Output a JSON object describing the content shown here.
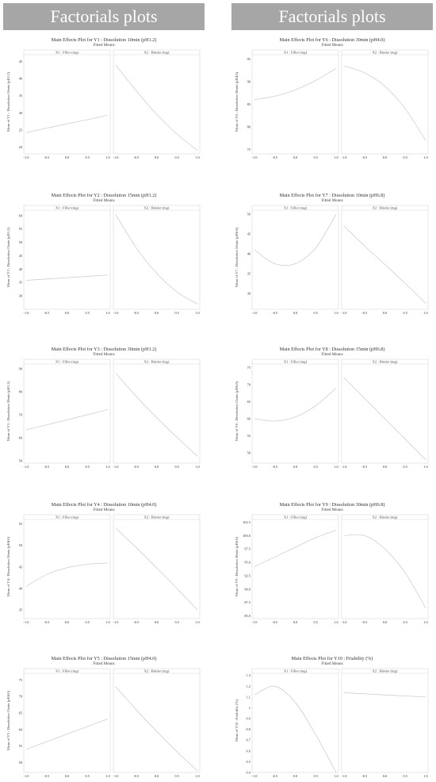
{
  "headers": {
    "left": "Factorials plots",
    "right": "Factorials plots"
  },
  "chart_data": [
    {
      "type": "line",
      "title": "Main Effects Plot for Y1 : Dissolution 10min (pH1.2)",
      "subtitle": "Fitted Means",
      "panels": [
        "X1 : Filler (mg)",
        "X2 : Binder (mg)"
      ],
      "ylabel": "Mean of Y1 : Dissolution 10min (pH1.2)",
      "xticks": [
        "-1.0",
        "-0.5",
        "0.0",
        "0.5",
        "1.0"
      ],
      "yticks": [
        20,
        25,
        30,
        35,
        40,
        45
      ],
      "ylim": [
        18,
        47
      ],
      "series": [
        {
          "x": [
            -1.0,
            -0.5,
            0.0,
            0.5,
            1.0
          ],
          "y": [
            24.2,
            25.5,
            26.8,
            28.0,
            29.3
          ]
        },
        {
          "x": [
            -1.0,
            -0.5,
            0.0,
            0.5,
            1.0
          ],
          "y": [
            44.0,
            36.5,
            29.6,
            23.8,
            19.0
          ]
        }
      ]
    },
    {
      "type": "line",
      "title": "Main Effects Plot for Y2 : Dissolution 15min (pH1.2)",
      "subtitle": "Fitted Means",
      "panels": [
        "X1 : Filler (mg)",
        "X2 : Binder (mg)"
      ],
      "ylabel": "Mean of Y2 : Dissolution 15min (pH1.2)",
      "xticks": [
        "-1.0",
        "-0.5",
        "0.0",
        "0.5",
        "1.0"
      ],
      "yticks": [
        30,
        35,
        40,
        45,
        50,
        55,
        60
      ],
      "ylim": [
        25,
        62
      ],
      "series": [
        {
          "x": [
            -1.0,
            -0.5,
            0.0,
            0.5,
            1.0
          ],
          "y": [
            35.8,
            36.3,
            36.8,
            37.3,
            37.8
          ]
        },
        {
          "x": [
            -1.0,
            -0.5,
            0.0,
            0.5,
            1.0
          ],
          "y": [
            60.3,
            48.0,
            38.5,
            31.5,
            27.0
          ]
        }
      ]
    },
    {
      "type": "line",
      "title": "Main Effects Plot for Y3 : Dissolution 30min (pH1.2)",
      "subtitle": "Fitted Means",
      "panels": [
        "X1 : Filler (mg)",
        "X2 : Binder (mg)"
      ],
      "ylabel": "Mean of Y3 : Dissolution 30min (pH1.2)",
      "xticks": [
        "-1.0",
        "-0.5",
        "0.0",
        "0.5",
        "1.0"
      ],
      "yticks": [
        50,
        60,
        70,
        80,
        90
      ],
      "ylim": [
        49,
        92
      ],
      "series": [
        {
          "x": [
            -1.0,
            -0.5,
            0.0,
            0.5,
            1.0
          ],
          "y": [
            63.5,
            65.6,
            67.8,
            70.0,
            72.3
          ]
        },
        {
          "x": [
            -1.0,
            -0.5,
            0.0,
            0.5,
            1.0
          ],
          "y": [
            88.0,
            78.0,
            68.8,
            60.2,
            52.0
          ]
        }
      ]
    },
    {
      "type": "line",
      "title": "Main Effects Plot for Y4 : Dissolution 10min (pH4.0)",
      "subtitle": "Fitted Means",
      "panels": [
        "X1 : Filler (mg)",
        "X2 : Binder (mg)"
      ],
      "ylabel": "Mean of Y4 : Dissolution 10min (pH4.0)",
      "xticks": [
        "-1.0",
        "-0.5",
        "0.0",
        "0.5",
        "1.0"
      ],
      "yticks": [
        35,
        40,
        45,
        50,
        55
      ],
      "ylim": [
        33,
        56
      ],
      "series": [
        {
          "x": [
            -1.0,
            -0.5,
            0.0,
            0.5,
            1.0
          ],
          "y": [
            40.5,
            43.2,
            44.8,
            45.6,
            45.9
          ]
        },
        {
          "x": [
            -1.0,
            -0.5,
            0.0,
            0.5,
            1.0
          ],
          "y": [
            54.0,
            49.5,
            44.8,
            40.0,
            35.0
          ]
        }
      ]
    },
    {
      "type": "line",
      "title": "Main Effects Plot for Y5 : Dissolution 15min (pH4.0)",
      "subtitle": "Fitted Means",
      "panels": [
        "X1 : Filler (mg)",
        "X2 : Binder (mg)"
      ],
      "ylabel": "Mean of Y5 : Dissolution 15min (pH4.0)",
      "xticks": [
        "-1.0",
        "-0.5",
        "0.0",
        "0.5",
        "1.0"
      ],
      "yticks": [
        50,
        55,
        60,
        65,
        70,
        75
      ],
      "ylim": [
        47,
        77
      ],
      "series": [
        {
          "x": [
            -1.0,
            -0.5,
            0.0,
            0.5,
            1.0
          ],
          "y": [
            54.0,
            56.3,
            58.6,
            60.9,
            63.2
          ]
        },
        {
          "x": [
            -1.0,
            -0.5,
            0.0,
            0.5,
            1.0
          ],
          "y": [
            73.0,
            66.0,
            59.5,
            53.3,
            47.5
          ]
        }
      ]
    },
    {
      "type": "line",
      "title": "Main Effects Plot for Y6 : Dissolution 30min (pH4.0)",
      "subtitle": "Fitted Means",
      "panels": [
        "X1 : Filler (mg)",
        "X2 : Binder (mg)"
      ],
      "ylabel": "Mean of Y6 : Dissolution 30min (pH4.0)",
      "xticks": [
        "-1.0",
        "-0.5",
        "0.0",
        "0.5",
        "1.0"
      ],
      "yticks": [
        75,
        80,
        85,
        90,
        95
      ],
      "ylim": [
        74,
        96
      ],
      "series": [
        {
          "x": [
            -1.0,
            -0.5,
            0.0,
            0.5,
            1.0
          ],
          "y": [
            86.0,
            86.8,
            88.2,
            90.3,
            93.0
          ]
        },
        {
          "x": [
            -1.0,
            -0.5,
            0.0,
            0.5,
            1.0
          ],
          "y": [
            93.5,
            92.0,
            89.0,
            84.0,
            77.0
          ]
        }
      ]
    },
    {
      "type": "line",
      "title": "Main Effects Plot for Y7 : Dissolution 10min (pH6.8)",
      "subtitle": "Fitted Means",
      "panels": [
        "X1 : Filler (mg)",
        "X2 : Binder (mg)"
      ],
      "ylabel": "Mean of Y7 : Dissolution 10min (pH6.8)",
      "xticks": [
        "-1.0",
        "-0.5",
        "0.0",
        "0.5",
        "1.0"
      ],
      "yticks": [
        30,
        35,
        40,
        45,
        50
      ],
      "ylim": [
        26,
        51
      ],
      "series": [
        {
          "x": [
            -1.0,
            -0.5,
            0.0,
            0.5,
            1.0
          ],
          "y": [
            41.0,
            37.5,
            37.5,
            41.5,
            50.0
          ]
        },
        {
          "x": [
            -1.0,
            -0.5,
            0.0,
            0.5,
            1.0
          ],
          "y": [
            47.0,
            42.0,
            37.3,
            32.5,
            27.5
          ]
        }
      ]
    },
    {
      "type": "line",
      "title": "Main Effects Plot for Y8 : Dissolution 15min (pH6.8)",
      "subtitle": "Fitted Means",
      "panels": [
        "X1 : Filler (mg)",
        "X2 : Binder (mg)"
      ],
      "ylabel": "Mean of Y8 : Dissolution 15min (pH6.8)",
      "xticks": [
        "-1.0",
        "-0.5",
        "0.0",
        "0.5",
        "1.0"
      ],
      "yticks": [
        50,
        55,
        60,
        65,
        70,
        75
      ],
      "ylim": [
        47,
        76
      ],
      "series": [
        {
          "x": [
            -1.0,
            -0.5,
            0.0,
            0.5,
            1.0
          ],
          "y": [
            60.0,
            59.3,
            60.5,
            63.8,
            69.0
          ]
        },
        {
          "x": [
            -1.0,
            -0.5,
            0.0,
            0.5,
            1.0
          ],
          "y": [
            72.0,
            66.0,
            60.0,
            54.0,
            48.0
          ]
        }
      ]
    },
    {
      "type": "line",
      "title": "Main Effects Plot for Y9 : Dissolution 30min (pH6.8)",
      "subtitle": "Fitted Means",
      "panels": [
        "X1 : Filler (mg)",
        "X2 : Binder (mg)"
      ],
      "ylabel": "Mean of Y9 : Dissolution 30min (pH6.8)",
      "xticks": [
        "-1.0",
        "-0.5",
        "0.0",
        "0.5",
        "1.0"
      ],
      "yticks": [
        "85.0",
        "87.5",
        "90.0",
        "92.5",
        "95.0",
        "97.5",
        "100.0",
        "102.5"
      ],
      "ylim": [
        84.5,
        103
      ],
      "series": [
        {
          "x": [
            -1.0,
            -0.5,
            0.0,
            0.5,
            1.0
          ],
          "y": [
            94.2,
            96.0,
            97.8,
            99.6,
            101.0
          ]
        },
        {
          "x": [
            -1.0,
            -0.5,
            0.0,
            0.5,
            1.0
          ],
          "y": [
            100.0,
            100.0,
            97.5,
            93.0,
            86.5
          ]
        }
      ]
    },
    {
      "type": "line",
      "title": "Main Effects Plot for Y10 : Friability (%)",
      "subtitle": "Fitted Means",
      "panels": [
        "X1 : Filler (mg)",
        "X2 : Binder (mg)"
      ],
      "ylabel": "Mean of Y10 : Friability (%)",
      "xticks": [
        "-1.0",
        "-0.5",
        "0.0",
        "0.5",
        "1.0"
      ],
      "yticks": [
        0.4,
        0.5,
        0.6,
        0.7,
        0.8,
        0.9,
        1.0,
        1.1,
        1.2,
        1.3
      ],
      "ylim": [
        0.4,
        1.32
      ],
      "series": [
        {
          "x": [
            -1.0,
            -0.5,
            0.0,
            0.5,
            1.0
          ],
          "y": [
            1.12,
            1.2,
            1.05,
            0.75,
            0.4
          ]
        },
        {
          "x": [
            -1.0,
            -0.5,
            0.0,
            0.5,
            1.0
          ],
          "y": [
            1.14,
            1.13,
            1.12,
            1.11,
            1.1
          ]
        }
      ]
    }
  ]
}
